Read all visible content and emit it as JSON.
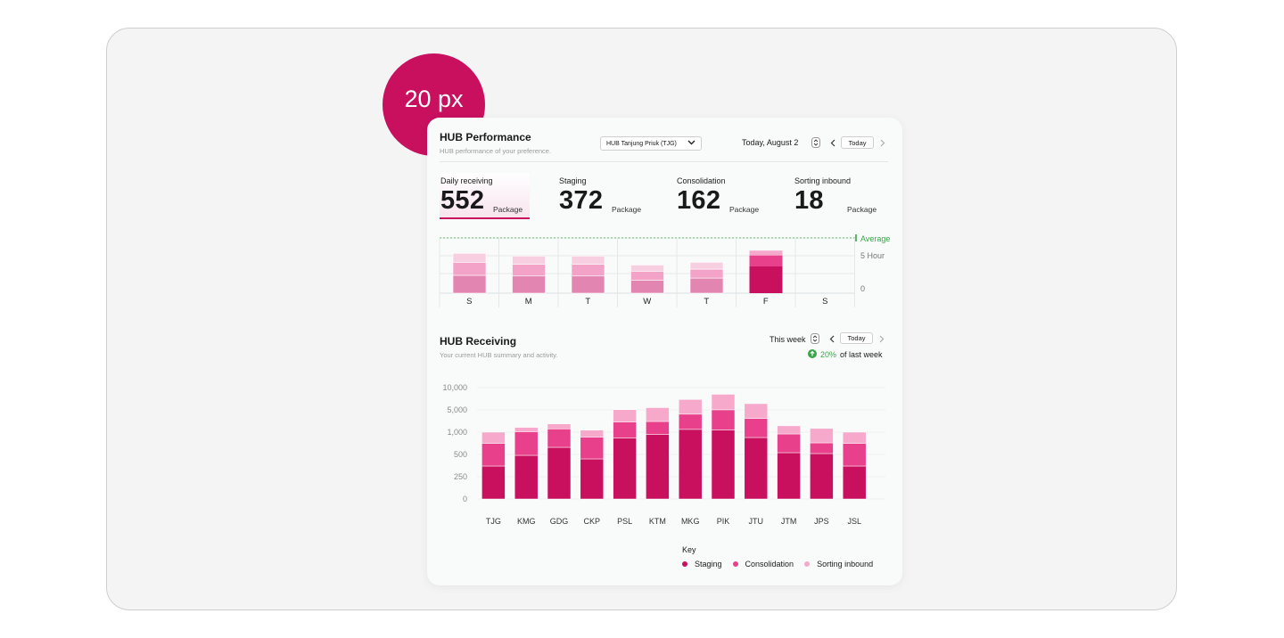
{
  "badge": {
    "text": "20 px"
  },
  "performance": {
    "title": "HUB Performance",
    "subtitle": "HUB performance of your preference.",
    "hub_select": "HUB Tanjung Priuk (TJG)",
    "date_label": "Today, August 2",
    "today_button": "Today",
    "stats": [
      {
        "label": "Daily receiving",
        "value": "552",
        "unit": "Package",
        "active": true
      },
      {
        "label": "Staging",
        "value": "372",
        "unit": "Package",
        "active": false
      },
      {
        "label": "Consolidation",
        "value": "162",
        "unit": "Package",
        "active": false
      },
      {
        "label": "Sorting inbound",
        "value": "18",
        "unit": "Package",
        "active": false
      }
    ],
    "chart_data": {
      "type": "bar",
      "stacked": true,
      "categories": [
        "S",
        "M",
        "T",
        "W",
        "T",
        "F",
        "S"
      ],
      "y_labels": [
        "Average",
        "5 Hour",
        "0"
      ],
      "series": [
        {
          "values": [
            2.6,
            2.5,
            2.5,
            1.9,
            2.2,
            3.9,
            0
          ]
        },
        {
          "values": [
            1.9,
            1.7,
            1.7,
            1.3,
            1.3,
            1.6,
            0
          ]
        },
        {
          "values": [
            1.3,
            1.2,
            1.2,
            0.9,
            1.0,
            0.7,
            0
          ]
        }
      ],
      "highlight_index": 5,
      "colors": {
        "base": [
          "#e285b0",
          "#f2a3c7",
          "#f8cfe0"
        ],
        "highlight": [
          "#c8105f",
          "#e8408a",
          "#f6a9cb"
        ],
        "average": "#3aa54a"
      }
    }
  },
  "receiving": {
    "title": "HUB Receiving",
    "subtitle": "Your current HUB summary and activity.",
    "week_label": "This week",
    "today_button": "Today",
    "change_pct": "20%",
    "change_text": "of last week",
    "chart_data": {
      "type": "bar",
      "stacked": true,
      "categories": [
        "TJG",
        "KMG",
        "GDG",
        "CKP",
        "PSL",
        "KTM",
        "MKG",
        "PIK",
        "JTU",
        "JTM",
        "JPS",
        "JSL"
      ],
      "y_ticks": [
        "10,000",
        "5,000",
        "1,000",
        "500",
        "250",
        "0"
      ],
      "series": [
        {
          "name": "Staging",
          "values": [
            370,
            490,
            660,
            450,
            870,
            950,
            1500,
            1400,
            880,
            540,
            520,
            370
          ]
        },
        {
          "name": "Consolidation",
          "values": [
            380,
            600,
            930,
            440,
            1970,
            1970,
            2730,
            3620,
            2570,
            420,
            240,
            380
          ]
        },
        {
          "name": "Sorting inbound",
          "values": [
            250,
            770,
            900,
            470,
            2210,
            2580,
            3100,
            3480,
            2950,
            1180,
            910,
            250
          ]
        }
      ],
      "colors": [
        "#c8105f",
        "#e8408a",
        "#f6a9cb"
      ]
    },
    "legend_title": "Key",
    "legend": [
      {
        "label": "Staging",
        "color": "#c8105f"
      },
      {
        "label": "Consolidation",
        "color": "#e8408a"
      },
      {
        "label": "Sorting inbound",
        "color": "#f6a9cb"
      }
    ]
  }
}
